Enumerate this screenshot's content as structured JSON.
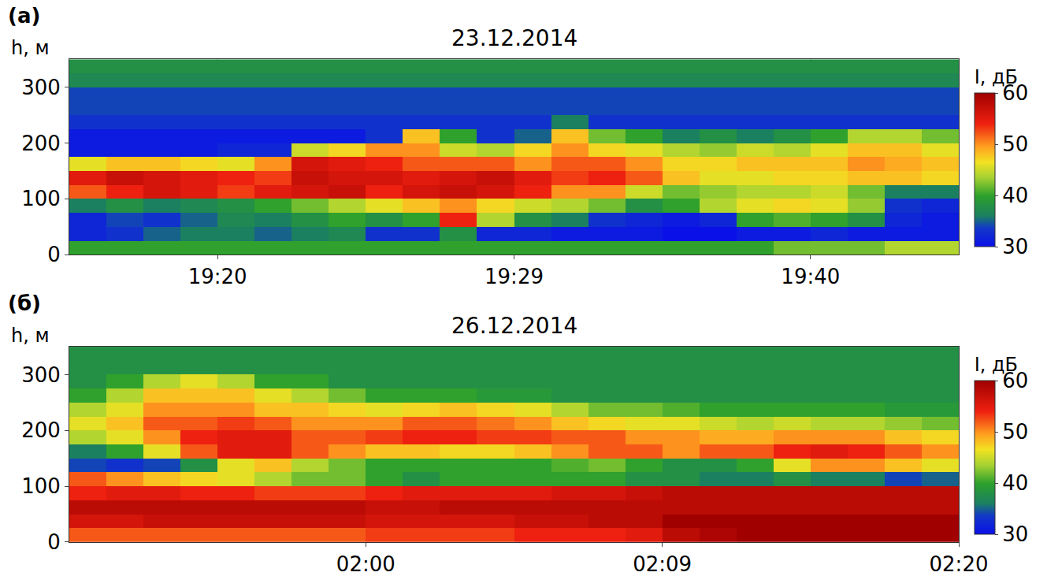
{
  "chart_data": [
    {
      "type": "heatmap",
      "annotations": [
        "(а)"
      ],
      "title": "23.12.2014",
      "y_label": "h, м",
      "colorbar_title": "I, дБ",
      "xlim": [
        0,
        24
      ],
      "xticks": [
        {
          "value": 4,
          "label": "19:20"
        },
        {
          "value": 12,
          "label": "19:29"
        },
        {
          "value": 20,
          "label": "19:40"
        }
      ],
      "ylim": [
        0,
        350
      ],
      "yticks": [
        0,
        100,
        200,
        300
      ],
      "grid": true,
      "zlim": [
        30,
        60
      ],
      "zticks": [
        30,
        40,
        50,
        60
      ],
      "x": [
        0.5,
        1.5,
        2.5,
        3.5,
        4.5,
        5.5,
        6.5,
        7.5,
        8.5,
        9.5,
        10.5,
        11.5,
        12.5,
        13.5,
        14.5,
        15.5,
        16.5,
        17.5,
        18.5,
        19.5,
        20.5,
        21.5,
        22.5,
        23.5
      ],
      "y": [
        12.5,
        37.5,
        62.5,
        87.5,
        112.5,
        137.5,
        162.5,
        187.5,
        212.5,
        237.5,
        262.5,
        287.5,
        312.5,
        337.5
      ],
      "z": [
        [
          40,
          40,
          40,
          40,
          40,
          40,
          40,
          40,
          40,
          40,
          40,
          40,
          40,
          40,
          40,
          40,
          40,
          40,
          40,
          42,
          42,
          42,
          44,
          44
        ],
        [
          32,
          33,
          35,
          36,
          36,
          35,
          36,
          37,
          33,
          33,
          38,
          32,
          32,
          31,
          31,
          31,
          30,
          30,
          31,
          31,
          32,
          31,
          31,
          31
        ],
        [
          32,
          34,
          33,
          35,
          37,
          36,
          38,
          40,
          38,
          40,
          54,
          44,
          38,
          36,
          33,
          32,
          31,
          32,
          40,
          41,
          40,
          38,
          32,
          31
        ],
        [
          36,
          38,
          36,
          37,
          38,
          40,
          42,
          44,
          46,
          48,
          50,
          47,
          45,
          44,
          42,
          38,
          40,
          44,
          46,
          47,
          46,
          43,
          33,
          32
        ],
        [
          52,
          54,
          56,
          55,
          53,
          55,
          56,
          57,
          54,
          56,
          57,
          56,
          54,
          50,
          50,
          45,
          42,
          43,
          44,
          44,
          45,
          42,
          36,
          36
        ],
        [
          55,
          57,
          56,
          55,
          54,
          53,
          57,
          56,
          56,
          55,
          56,
          57,
          55,
          53,
          54,
          52,
          48,
          46,
          46,
          47,
          47,
          48,
          48,
          47
        ],
        [
          46,
          48,
          48,
          47,
          46,
          50,
          56,
          55,
          54,
          52,
          52,
          52,
          50,
          52,
          52,
          50,
          47,
          47,
          48,
          48,
          48,
          50,
          49,
          48
        ],
        [
          31,
          31,
          31,
          31,
          32,
          32,
          45,
          47,
          50,
          50,
          45,
          44,
          47,
          50,
          47,
          46,
          44,
          43,
          45,
          44,
          46,
          48,
          48,
          46
        ],
        [
          31,
          31,
          31,
          31,
          31,
          31,
          31,
          31,
          33,
          48,
          40,
          33,
          35,
          48,
          42,
          40,
          36,
          38,
          36,
          38,
          40,
          44,
          44,
          42
        ],
        [
          33,
          33,
          33,
          33,
          33,
          33,
          33,
          33,
          33,
          33,
          33,
          33,
          33,
          36,
          33,
          33,
          33,
          33,
          33,
          33,
          33,
          33,
          33,
          33
        ],
        [
          34,
          34,
          34,
          34,
          34,
          34,
          34,
          34,
          34,
          34,
          34,
          34,
          34,
          34,
          34,
          34,
          34,
          34,
          34,
          34,
          34,
          34,
          34,
          34
        ],
        [
          34,
          34,
          34,
          34,
          34,
          34,
          34,
          34,
          34,
          34,
          34,
          34,
          34,
          34,
          34,
          34,
          34,
          34,
          34,
          34,
          34,
          34,
          34,
          34
        ],
        [
          37,
          37,
          37,
          37,
          37,
          37,
          37,
          37,
          37,
          37,
          37,
          37,
          37,
          37,
          37,
          37,
          37,
          37,
          37,
          37,
          37,
          37,
          37,
          37
        ],
        [
          38,
          38,
          38,
          38,
          38,
          38,
          38,
          38,
          38,
          38,
          38,
          38,
          38,
          38,
          38,
          38,
          38,
          38,
          38,
          38,
          38,
          38,
          38,
          38
        ]
      ]
    },
    {
      "type": "heatmap",
      "annotations": [
        "(б)"
      ],
      "title": "26.12.2014",
      "y_label": "h, м",
      "colorbar_title": "I, дБ",
      "xlim": [
        0,
        24
      ],
      "xticks": [
        {
          "value": 8,
          "label": "02:00"
        },
        {
          "value": 16,
          "label": "02:09"
        },
        {
          "value": 24,
          "label": "02:20"
        }
      ],
      "ylim": [
        0,
        350
      ],
      "yticks": [
        0,
        100,
        200,
        300
      ],
      "grid": true,
      "zlim": [
        30,
        60
      ],
      "zticks": [
        30,
        40,
        50,
        60
      ],
      "x": [
        0.5,
        1.5,
        2.5,
        3.5,
        4.5,
        5.5,
        6.5,
        7.5,
        8.5,
        9.5,
        10.5,
        11.5,
        12.5,
        13.5,
        14.5,
        15.5,
        16.5,
        17.5,
        18.5,
        19.5,
        20.5,
        21.5,
        22.5,
        23.5
      ],
      "y": [
        12.5,
        37.5,
        62.5,
        87.5,
        112.5,
        137.5,
        162.5,
        187.5,
        212.5,
        237.5,
        262.5,
        287.5,
        312.5,
        337.5
      ],
      "z": [
        [
          52,
          52,
          52,
          52,
          52,
          52,
          52,
          52,
          53,
          53,
          53,
          53,
          54,
          54,
          54,
          55,
          58,
          59,
          60,
          60,
          60,
          60,
          60,
          60
        ],
        [
          56,
          56,
          57,
          57,
          57,
          57,
          57,
          57,
          56,
          56,
          56,
          56,
          57,
          57,
          58,
          58,
          60,
          60,
          60,
          60,
          60,
          60,
          60,
          60
        ],
        [
          58,
          58,
          58,
          58,
          58,
          58,
          58,
          58,
          57,
          57,
          58,
          58,
          58,
          58,
          58,
          58,
          58,
          58,
          58,
          58,
          58,
          58,
          58,
          58
        ],
        [
          54,
          55,
          55,
          54,
          54,
          53,
          53,
          53,
          54,
          55,
          55,
          55,
          55,
          56,
          56,
          57,
          58,
          58,
          58,
          58,
          58,
          58,
          58,
          58
        ],
        [
          52,
          50,
          48,
          47,
          46,
          44,
          42,
          42,
          40,
          38,
          40,
          40,
          40,
          40,
          40,
          38,
          38,
          36,
          36,
          38,
          36,
          36,
          34,
          35
        ],
        [
          34,
          33,
          34,
          38,
          46,
          48,
          44,
          42,
          40,
          40,
          40,
          40,
          40,
          41,
          42,
          40,
          38,
          38,
          40,
          46,
          50,
          50,
          48,
          46
        ],
        [
          36,
          40,
          46,
          52,
          55,
          55,
          52,
          50,
          48,
          48,
          47,
          47,
          48,
          50,
          52,
          52,
          50,
          52,
          52,
          54,
          55,
          54,
          52,
          50
        ],
        [
          44,
          46,
          50,
          54,
          55,
          55,
          52,
          52,
          53,
          54,
          54,
          53,
          53,
          52,
          52,
          50,
          50,
          49,
          49,
          50,
          50,
          50,
          48,
          47
        ],
        [
          46,
          48,
          52,
          52,
          53,
          52,
          50,
          50,
          50,
          52,
          52,
          51,
          50,
          48,
          47,
          46,
          46,
          45,
          44,
          45,
          44,
          44,
          43,
          42
        ],
        [
          44,
          46,
          50,
          50,
          50,
          48,
          48,
          47,
          46,
          47,
          48,
          47,
          46,
          44,
          42,
          42,
          41,
          40,
          40,
          40,
          40,
          40,
          39,
          39
        ],
        [
          40,
          44,
          48,
          48,
          48,
          46,
          44,
          42,
          40,
          40,
          40,
          39,
          39,
          38,
          38,
          38,
          38,
          38,
          38,
          38,
          38,
          38,
          38,
          38
        ],
        [
          38,
          40,
          44,
          46,
          44,
          40,
          40,
          38,
          38,
          38,
          38,
          38,
          38,
          38,
          38,
          38,
          38,
          38,
          38,
          38,
          38,
          38,
          38,
          38
        ],
        [
          38,
          38,
          38,
          38,
          38,
          38,
          38,
          38,
          38,
          38,
          38,
          38,
          38,
          38,
          38,
          38,
          38,
          38,
          38,
          38,
          38,
          38,
          38,
          38
        ],
        [
          38,
          38,
          38,
          38,
          38,
          38,
          38,
          38,
          38,
          38,
          38,
          38,
          38,
          38,
          38,
          38,
          38,
          38,
          38,
          38,
          38,
          38,
          38,
          38
        ]
      ]
    }
  ]
}
